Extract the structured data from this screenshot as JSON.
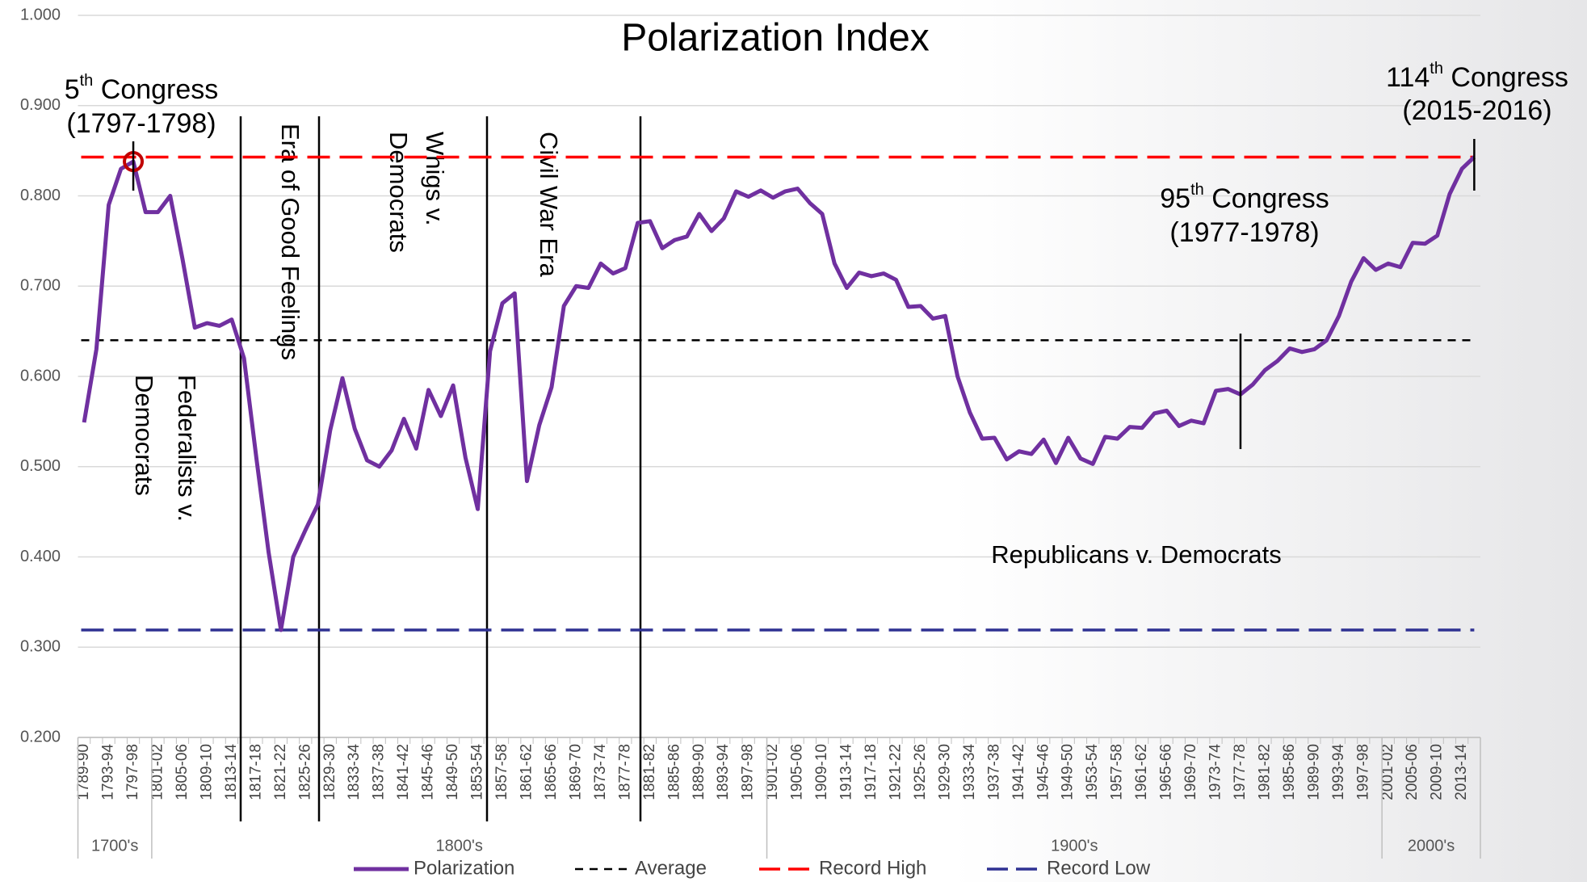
{
  "chart_data": {
    "type": "line",
    "title": "Polarization Index",
    "categories": [
      "1789-90",
      null,
      "1793-94",
      null,
      "1797-98",
      null,
      "1801-02",
      null,
      "1805-06",
      null,
      "1809-10",
      null,
      "1813-14",
      null,
      "1817-18",
      null,
      "1821-22",
      null,
      "1825-26",
      null,
      "1829-30",
      null,
      "1833-34",
      null,
      "1837-38",
      null,
      "1841-42",
      null,
      "1845-46",
      null,
      "1849-50",
      null,
      "1853-54",
      null,
      "1857-58",
      null,
      "1861-62",
      null,
      "1865-66",
      null,
      "1869-70",
      null,
      "1873-74",
      null,
      "1877-78",
      null,
      "1881-82",
      null,
      "1885-86",
      null,
      "1889-90",
      null,
      "1893-94",
      null,
      "1897-98",
      null,
      "1901-02",
      null,
      "1905-06",
      null,
      "1909-10",
      null,
      "1913-14",
      null,
      "1917-18",
      null,
      "1921-22",
      null,
      "1925-26",
      null,
      "1929-30",
      null,
      "1933-34",
      null,
      "1937-38",
      null,
      "1941-42",
      null,
      "1945-46",
      null,
      "1949-50",
      null,
      "1953-54",
      null,
      "1957-58",
      null,
      "1961-62",
      null,
      "1965-66",
      null,
      "1969-70",
      null,
      "1973-74",
      null,
      "1977-78",
      null,
      "1981-82",
      null,
      "1985-86",
      null,
      "1989-90",
      null,
      "1993-94",
      null,
      "1997-98",
      null,
      "2001-02",
      null,
      "2005-06",
      null,
      "2009-10",
      null,
      "2013-14",
      null
    ],
    "groups": [
      {
        "label": "1700's",
        "count": 6
      },
      {
        "label": "1800's",
        "count": 50
      },
      {
        "label": "1900's",
        "count": 50
      },
      {
        "label": "2000's",
        "count": 8
      }
    ],
    "series": [
      {
        "name": "Polarization",
        "color": "#7030a0",
        "values": [
          0.549,
          0.63,
          0.79,
          0.83,
          0.838,
          0.782,
          0.782,
          0.8,
          0.73,
          0.654,
          0.659,
          0.656,
          0.663,
          0.62,
          0.51,
          0.405,
          0.319,
          0.4,
          0.43,
          0.458,
          0.54,
          0.598,
          0.542,
          0.507,
          0.5,
          0.518,
          0.553,
          0.52,
          0.585,
          0.556,
          0.59,
          0.51,
          0.453,
          0.628,
          0.681,
          0.692,
          0.484,
          0.546,
          0.588,
          0.678,
          0.7,
          0.698,
          0.725,
          0.714,
          0.72,
          0.77,
          0.772,
          0.742,
          0.751,
          0.755,
          0.78,
          0.761,
          0.775,
          0.805,
          0.799,
          0.806,
          0.798,
          0.805,
          0.808,
          0.792,
          0.78,
          0.725,
          0.698,
          0.715,
          0.711,
          0.714,
          0.707,
          0.677,
          0.678,
          0.664,
          0.667,
          0.6,
          0.56,
          0.531,
          0.532,
          0.508,
          0.517,
          0.514,
          0.53,
          0.504,
          0.532,
          0.509,
          0.503,
          0.533,
          0.531,
          0.544,
          0.543,
          0.559,
          0.562,
          0.545,
          0.551,
          0.548,
          0.584,
          0.586,
          0.58,
          0.591,
          0.607,
          0.617,
          0.631,
          0.627,
          0.63,
          0.64,
          0.667,
          0.705,
          0.731,
          0.718,
          0.725,
          0.721,
          0.748,
          0.747,
          0.756,
          0.802,
          0.83,
          0.843
        ]
      }
    ],
    "reference_lines": [
      {
        "name": "Average",
        "value": 0.64,
        "color": "#000000"
      },
      {
        "name": "Record High",
        "value": 0.843,
        "color": "#ff0000"
      },
      {
        "name": "Record Low",
        "value": 0.319,
        "color": "#2e3192"
      }
    ],
    "ylim": [
      0.2,
      1.0
    ],
    "yticks": [
      {
        "value": 0.2,
        "label": "0.200"
      },
      {
        "value": 0.3,
        "label": "0.300"
      },
      {
        "value": 0.4,
        "label": "0.400"
      },
      {
        "value": 0.5,
        "label": "0.500"
      },
      {
        "value": 0.6,
        "label": "0.600"
      },
      {
        "value": 0.7,
        "label": "0.700"
      },
      {
        "value": 0.8,
        "label": "0.800"
      },
      {
        "value": 0.9,
        "label": "0.900"
      },
      {
        "value": 1.0,
        "label": "1.000"
      }
    ],
    "grid": true,
    "legend": "bottom",
    "annotations": [
      {
        "number": "5",
        "suffix": "th",
        "text": " Congress",
        "years": "(1797-1798)"
      },
      {
        "number": "114",
        "suffix": "th",
        "text": " Congress",
        "years": "(2015-2016)"
      },
      {
        "number": "95",
        "suffix": "th",
        "text": " Congress",
        "years": "(1977-1978)"
      }
    ],
    "eras": [
      {
        "line1": "Federalists v.",
        "line2": "Democrats"
      },
      {
        "line1": "Era of Good Feelings"
      },
      {
        "line1": "Whigs v.",
        "line2": "Democrats"
      },
      {
        "line1": "Civil War Era"
      },
      {
        "line1": "Republicans v. Democrats"
      }
    ]
  }
}
